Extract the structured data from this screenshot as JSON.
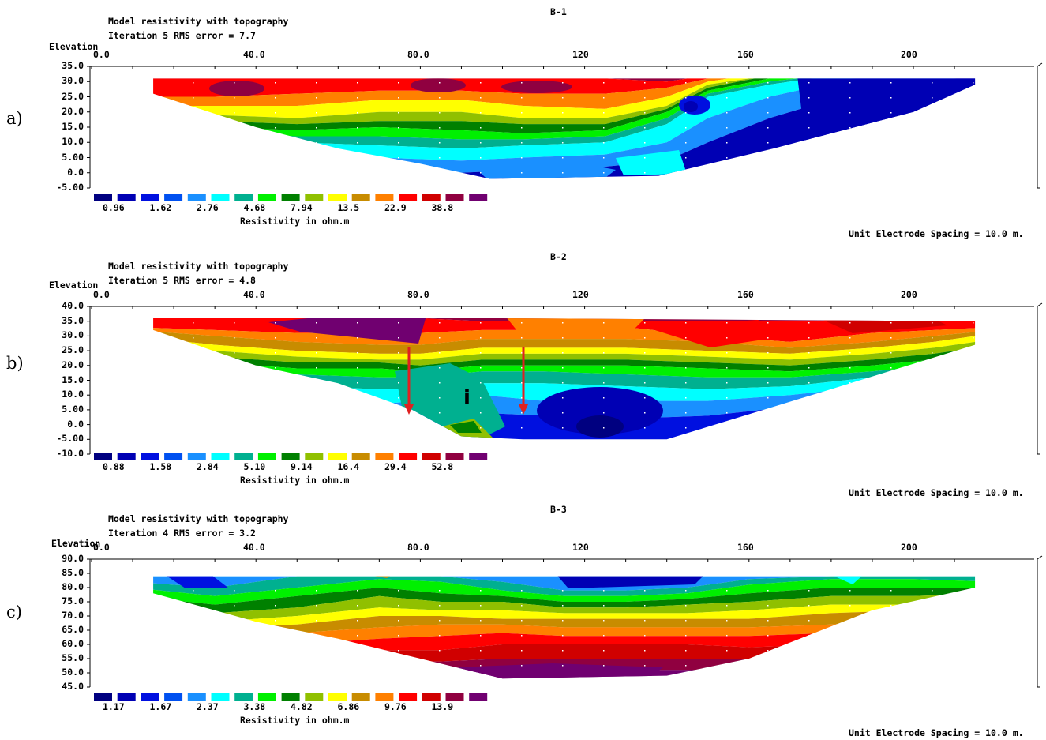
{
  "figure": {
    "panels": [
      {
        "letter": "a)",
        "section_id": "B-1",
        "title": "Model resistivity with topography",
        "iteration": "Iteration 5 RMS error = 7.7",
        "elevation_label": "Elevation",
        "x_ticks": [
          "0.0",
          "40.0",
          "80.0",
          "120",
          "160",
          "200"
        ],
        "y_ticks": [
          "35.0",
          "30.0",
          "25.0",
          "20.0",
          "15.0",
          "10.0",
          "5.00",
          "0.0",
          "-5.00"
        ],
        "legend_values": [
          "0.96",
          "1.62",
          "2.76",
          "4.68",
          "7.94",
          "13.5",
          "22.9",
          "38.8"
        ],
        "legend_title": "Resistivity in ohm.m",
        "spacing_note": "Unit Electrode Spacing = 10.0 m."
      },
      {
        "letter": "b)",
        "section_id": "B-2",
        "title": "Model resistivity with topography",
        "iteration": "Iteration 5 RMS error = 4.8",
        "elevation_label": "Elevation",
        "x_ticks": [
          "0.0",
          "40.0",
          "80.0",
          "120",
          "160",
          "200"
        ],
        "y_ticks": [
          "40.0",
          "35.0",
          "30.0",
          "25.0",
          "20.0",
          "15.0",
          "10.0",
          "5.00",
          "0.0",
          "-5.00",
          "-10.0"
        ],
        "legend_values": [
          "0.88",
          "1.58",
          "2.84",
          "5.10",
          "9.14",
          "16.4",
          "29.4",
          "52.8"
        ],
        "legend_title": "Resistivity in ohm.m",
        "spacing_note": "Unit Electrode Spacing = 10.0 m."
      },
      {
        "letter": "c)",
        "section_id": "B-3",
        "title": "Model resistivity with topography",
        "iteration": "Iteration 4 RMS error = 3.2",
        "elevation_label": "Elevation",
        "x_ticks": [
          "0.0",
          "40.0",
          "80.0",
          "120",
          "160",
          "200"
        ],
        "y_ticks": [
          "90.0",
          "85.0",
          "80.0",
          "75.0",
          "70.0",
          "65.0",
          "60.0",
          "55.0",
          "50.0",
          "45.0"
        ],
        "legend_values": [
          "1.17",
          "1.67",
          "2.37",
          "3.38",
          "4.82",
          "6.86",
          "9.76",
          "13.9"
        ],
        "legend_title": "Resistivity in ohm.m",
        "spacing_note": "Unit Electrode Spacing = 10.0 m."
      }
    ],
    "palette": [
      "#000080",
      "#0000b4",
      "#0010e0",
      "#0050f0",
      "#1a90ff",
      "#00ffff",
      "#00b090",
      "#00f000",
      "#008000",
      "#90c000",
      "#ffff00",
      "#c88c00",
      "#ff8000",
      "#ff0000",
      "#d00000",
      "#900040",
      "#700070"
    ],
    "annotation": "i"
  },
  "chart_data": [
    {
      "type": "heatmap",
      "title": "B-1",
      "subtitle": "Model resistivity with topography",
      "ylabel": "Elevation",
      "xlabel": "",
      "xlim": [
        0,
        215
      ],
      "ylim": [
        -5,
        35
      ],
      "legend_title": "Resistivity in ohm.m",
      "legend_values": [
        0.96,
        1.62,
        2.76,
        4.68,
        7.94,
        13.5,
        22.9,
        38.8
      ],
      "rms_error": 7.7,
      "iteration": 5,
      "surface": [
        [
          15,
          31
        ],
        [
          215,
          31
        ]
      ],
      "base": [
        [
          15,
          26
        ],
        [
          40,
          15
        ],
        [
          60,
          8
        ],
        [
          80,
          3
        ],
        [
          97,
          -2
        ],
        [
          138,
          -1
        ],
        [
          166,
          8
        ],
        [
          200,
          20
        ],
        [
          215,
          29
        ]
      ],
      "layers": [
        {
          "x": [
            15,
            40,
            60,
            80,
            97,
            120,
            138,
            155,
            175,
            200,
            215
          ],
          "y": [
            27,
            17,
            12,
            8,
            6,
            7,
            9,
            14,
            18,
            22,
            28
          ],
          "class": 13
        },
        {
          "x": [
            15,
            40,
            60,
            80,
            97,
            120,
            138,
            155,
            175,
            200,
            215
          ],
          "y": [
            25,
            18,
            16,
            13,
            11,
            11,
            13,
            17,
            21,
            25,
            29
          ],
          "class": 12
        }
      ]
    },
    {
      "type": "heatmap",
      "title": "B-2",
      "subtitle": "Model resistivity with topography",
      "ylabel": "Elevation",
      "xlabel": "",
      "xlim": [
        0,
        215
      ],
      "ylim": [
        -10,
        40
      ],
      "legend_title": "Resistivity in ohm.m",
      "legend_values": [
        0.88,
        1.58,
        2.84,
        5.1,
        9.14,
        16.4,
        29.4,
        52.8
      ],
      "rms_error": 4.8,
      "iteration": 5,
      "surface": [
        [
          15,
          36
        ],
        [
          85,
          36
        ],
        [
          100,
          36
        ],
        [
          215,
          35
        ]
      ],
      "base": [
        [
          15,
          32
        ],
        [
          40,
          20
        ],
        [
          60,
          14
        ],
        [
          78,
          5
        ],
        [
          90,
          -4
        ],
        [
          105,
          -5
        ],
        [
          140,
          -5
        ],
        [
          180,
          12
        ],
        [
          215,
          27
        ]
      ],
      "arrows": [
        {
          "x": 78,
          "from": 25,
          "to": 3
        },
        {
          "x": 105,
          "from": 25,
          "to": 3
        }
      ],
      "annotation": {
        "x": 92,
        "y": 5,
        "text": "i"
      }
    },
    {
      "type": "heatmap",
      "title": "B-3",
      "subtitle": "Model resistivity with topography",
      "ylabel": "Elevation",
      "xlabel": "",
      "xlim": [
        0,
        215
      ],
      "ylim": [
        45,
        90
      ],
      "legend_title": "Resistivity in ohm.m",
      "legend_values": [
        1.17,
        1.67,
        2.37,
        3.38,
        4.82,
        6.86,
        9.76,
        13.9
      ],
      "rms_error": 3.2,
      "iteration": 4,
      "surface": [
        [
          15,
          84
        ],
        [
          215,
          84
        ]
      ],
      "base": [
        [
          15,
          78
        ],
        [
          40,
          68
        ],
        [
          60,
          62
        ],
        [
          80,
          55
        ],
        [
          100,
          48
        ],
        [
          140,
          49
        ],
        [
          160,
          55
        ],
        [
          190,
          72
        ],
        [
          215,
          80
        ]
      ]
    }
  ]
}
